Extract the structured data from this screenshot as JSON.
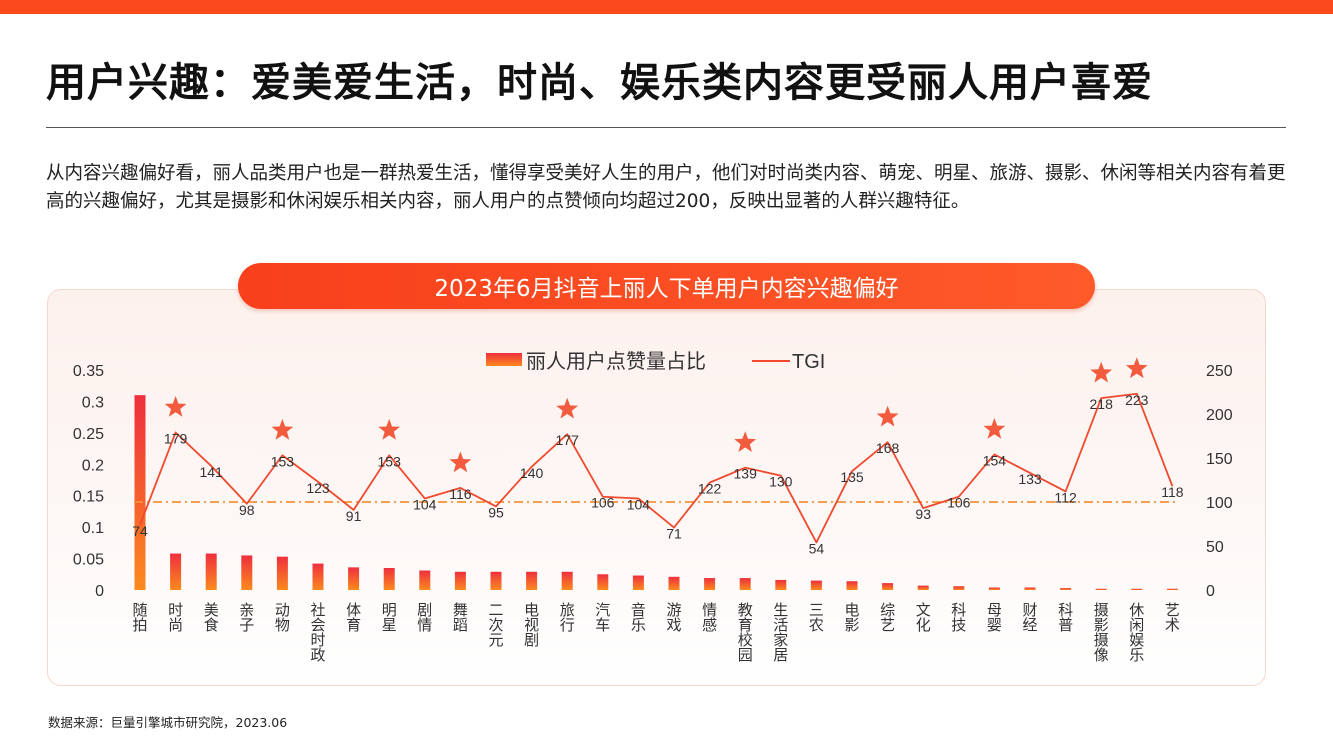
{
  "title": "用户兴趣：爱美爱生活，时尚、娱乐类内容更受丽人用户喜爱",
  "description": "从内容兴趣偏好看，丽人品类用户也是一群热爱生活，懂得享受美好人生的用户，他们对时尚类内容、萌宠、明星、旅游、摄影、休闲等相关内容有着更高的兴趣偏好，尤其是摄影和休闲娱乐相关内容，丽人用户的点赞倾向均超过200，反映出显著的人群兴趣特征。",
  "source": "数据来源：巨量引擎城市研究院，2023.06",
  "colors": {
    "accent": "#fb4a1c",
    "bar_top": "#ee2f3e",
    "bar_bottom": "#fb8a1e",
    "line": "#f04a2e",
    "star": "#f25b3e",
    "ref_line": "#f5933a"
  },
  "chart_data": {
    "type": "bar",
    "title": "2023年6月抖音上丽人下单用户内容兴趣偏好",
    "categories": [
      "随拍",
      "时尚",
      "美食",
      "亲子",
      "动物",
      "社会时政",
      "体育",
      "明星",
      "剧情",
      "舞蹈",
      "二次元",
      "电视剧",
      "旅行",
      "汽车",
      "音乐",
      "游戏",
      "情感",
      "教育校园",
      "生活家居",
      "三农",
      "电影",
      "综艺",
      "文化",
      "科技",
      "母婴",
      "财经",
      "科普",
      "摄影摄像",
      "休闲娱乐",
      "艺术"
    ],
    "series": [
      {
        "name": "丽人用户点赞量占比",
        "type": "bar",
        "axis": "left",
        "values": [
          0.31,
          0.058,
          0.058,
          0.055,
          0.053,
          0.042,
          0.036,
          0.035,
          0.031,
          0.029,
          0.029,
          0.029,
          0.029,
          0.025,
          0.023,
          0.021,
          0.019,
          0.019,
          0.016,
          0.015,
          0.014,
          0.011,
          0.007,
          0.006,
          0.004,
          0.004,
          0.003,
          0.002,
          0.002,
          0.002
        ]
      },
      {
        "name": "TGI",
        "type": "line",
        "axis": "right",
        "values": [
          74,
          179,
          141,
          98,
          153,
          123,
          91,
          153,
          104,
          116,
          95,
          140,
          177,
          106,
          104,
          71,
          122,
          139,
          130,
          54,
          135,
          168,
          93,
          106,
          154,
          133,
          112,
          218,
          223,
          118
        ]
      }
    ],
    "y_left": {
      "range": [
        0,
        0.35
      ],
      "ticks": [
        "0",
        "0.05",
        "0.1",
        "0.15",
        "0.2",
        "0.25",
        "0.3",
        "0.35"
      ]
    },
    "y_right": {
      "range": [
        0,
        250
      ],
      "ticks": [
        "0",
        "50",
        "100",
        "150",
        "200",
        "250"
      ]
    },
    "reference_line": 100,
    "starred_categories": [
      "时尚",
      "动物",
      "明星",
      "舞蹈",
      "旅行",
      "教育校园",
      "综艺",
      "母婴",
      "摄影摄像",
      "休闲娱乐"
    ],
    "legend_position": "top-center",
    "grid": false
  }
}
